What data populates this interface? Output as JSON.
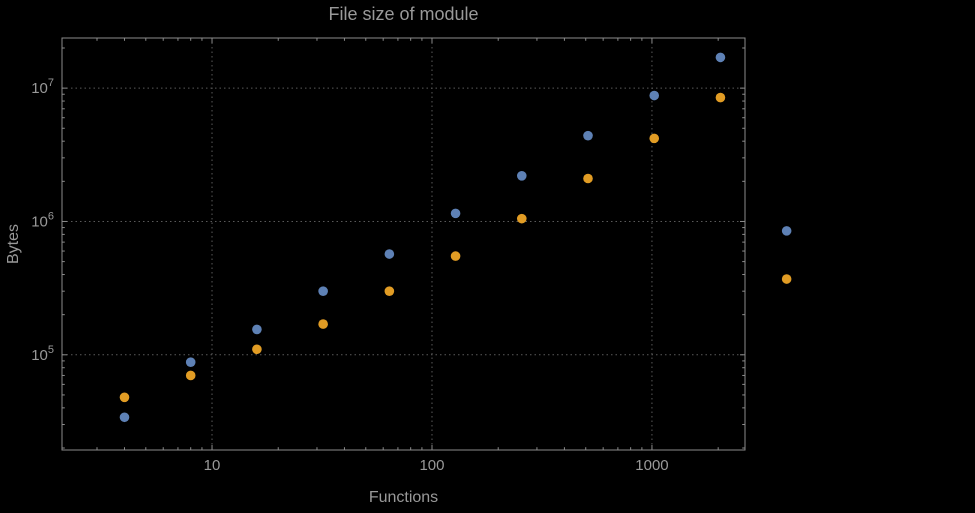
{
  "window": {
    "background": "#000000"
  },
  "chart_data": {
    "type": "scatter",
    "title": "File size of module",
    "xlabel": "Functions",
    "ylabel": "Bytes",
    "x_scale": "log",
    "y_scale": "log",
    "grid": "dotted",
    "legend_position": "none",
    "x_ticks": [
      10,
      100,
      1000
    ],
    "x_tick_labels": [
      "10",
      "100",
      "1000"
    ],
    "y_ticks": [
      100000,
      1000000,
      10000000
    ],
    "y_tick_labels": [
      "10^5",
      "10^6",
      "10^7"
    ],
    "x_log_range": [
      0.318,
      3.423
    ],
    "y_log_range": [
      4.286,
      7.376
    ],
    "x": [
      4,
      8,
      16,
      32,
      64,
      128,
      256,
      512,
      1024,
      2048,
      4096
    ],
    "series": [
      {
        "name": "series-blue",
        "color": "#5e81b5",
        "values": [
          34000,
          88000,
          155000,
          300000,
          570000,
          1150000,
          2200000,
          4400000,
          8800000,
          17000000,
          850000
        ]
      },
      {
        "name": "series-orange",
        "color": "#e19c24",
        "values": [
          48000,
          70000,
          110000,
          170000,
          300000,
          550000,
          1050000,
          2100000,
          4200000,
          8500000,
          370000
        ]
      }
    ]
  },
  "style": {
    "background": "#000000",
    "frame_color": "#8c8c8c",
    "grid_color": "#5a5a5a",
    "tick_label_color": "#999999",
    "title_color": "#999999",
    "axis_label_color": "#999999",
    "point_radius": 4.8
  }
}
